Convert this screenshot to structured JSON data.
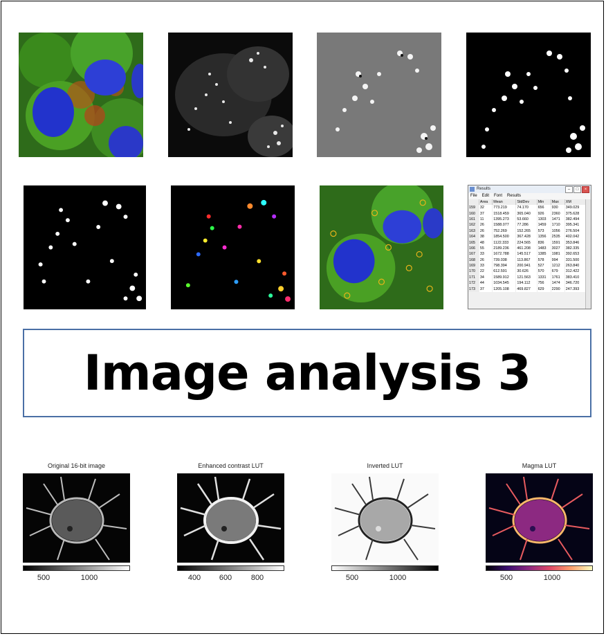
{
  "title": "Image analysis 3",
  "colors": {
    "border": "#4a6fa5",
    "text": "#000000"
  },
  "top_row_tiles": [
    {
      "name": "fluorescence-cells-image"
    },
    {
      "name": "grayscale-mitochondria-image"
    },
    {
      "name": "filtered-spots-image"
    },
    {
      "name": "thresholded-binary-image"
    }
  ],
  "second_row_tiles": [
    {
      "name": "binary-mask-image"
    },
    {
      "name": "labeled-particles-image"
    },
    {
      "name": "roi-overlay-image"
    }
  ],
  "results_window": {
    "title": "Results",
    "menu": [
      "File",
      "Edit",
      "Font",
      "Results"
    ],
    "columns": [
      "",
      "Area",
      "Mean",
      "StdDev",
      "Min",
      "Max",
      "XM"
    ],
    "rows": [
      [
        "159",
        "32",
        "773.219",
        "74.170",
        "656",
        "930",
        "349.029"
      ],
      [
        "160",
        "37",
        "1518.459",
        "365.040",
        "926",
        "2360",
        "375.628"
      ],
      [
        "161",
        "11",
        "1395.273",
        "53.660",
        "1303",
        "1471",
        "382.494"
      ],
      [
        "162",
        "26",
        "1588.077",
        "77.286",
        "1459",
        "1710",
        "395.341"
      ],
      [
        "163",
        "26",
        "752.269",
        "152.265",
        "573",
        "1056",
        "276.504"
      ],
      [
        "164",
        "38",
        "1854.500",
        "367.428",
        "1356",
        "2535",
        "402.042"
      ],
      [
        "165",
        "48",
        "1122.333",
        "224.565",
        "836",
        "1591",
        "353.846"
      ],
      [
        "166",
        "55",
        "2189.236",
        "461.208",
        "1483",
        "3027",
        "382.335"
      ],
      [
        "167",
        "33",
        "1672.788",
        "145.517",
        "1385",
        "1981",
        "392.653"
      ],
      [
        "168",
        "26",
        "739.038",
        "113.867",
        "578",
        "994",
        "331.500"
      ],
      [
        "169",
        "33",
        "798.394",
        "200.941",
        "527",
        "1212",
        "263.840"
      ],
      [
        "170",
        "22",
        "612.591",
        "30.626",
        "570",
        "679",
        "312.422"
      ],
      [
        "171",
        "34",
        "1589.912",
        "121.563",
        "1331",
        "1761",
        "383.410"
      ],
      [
        "172",
        "44",
        "1034.545",
        "194.112",
        "756",
        "1474",
        "346.720"
      ],
      [
        "173",
        "37",
        "1205.108",
        "469.827",
        "629",
        "2290",
        "247.393"
      ]
    ]
  },
  "lut_panels": [
    {
      "label": "Original 16-bit image",
      "ticks": [
        "500",
        "1000"
      ],
      "colormap": "gray"
    },
    {
      "label": "Enhanced contrast LUT",
      "ticks": [
        "400",
        "600",
        "800"
      ],
      "colormap": "gray"
    },
    {
      "label": "Inverted LUT",
      "ticks": [
        "500",
        "1000"
      ],
      "colormap": "gray_r"
    },
    {
      "label": "Magma LUT",
      "ticks": [
        "500",
        "1000"
      ],
      "colormap": "magma"
    }
  ]
}
